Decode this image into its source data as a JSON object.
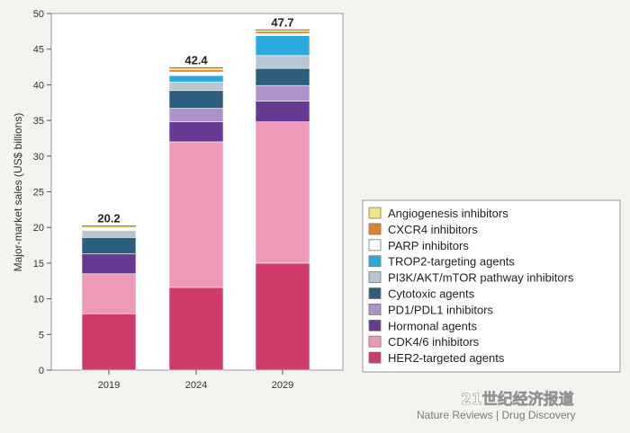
{
  "chart_data": {
    "type": "bar",
    "stacked": true,
    "categories": [
      "2019",
      "2024",
      "2029"
    ],
    "ylabel": "Major-market sales (US$ billions)",
    "xlabel": "",
    "ylim": [
      0,
      50
    ],
    "yticks": [
      0,
      5,
      10,
      15,
      20,
      25,
      30,
      35,
      40,
      45,
      50
    ],
    "totals": [
      "20.2",
      "42.4",
      "47.7"
    ],
    "total_values": [
      20.2,
      42.4,
      47.7
    ],
    "legend_placement": "bottom-right",
    "series": [
      {
        "name": "HER2-targeted agents",
        "color": "#cf3c6a",
        "values": [
          7.9,
          11.6,
          15.0
        ]
      },
      {
        "name": "CDK4/6 inhibitors",
        "color": "#ec9ab8",
        "values": [
          5.6,
          20.4,
          19.8
        ]
      },
      {
        "name": "Hormonal agents",
        "color": "#663a93",
        "values": [
          2.8,
          2.8,
          2.9
        ]
      },
      {
        "name": "PD1/PDL1 inhibitors",
        "color": "#ae93c9",
        "values": [
          0.0,
          1.9,
          2.2
        ]
      },
      {
        "name": "Cytotoxic agents",
        "color": "#2c5e7d",
        "values": [
          2.3,
          2.5,
          2.4
        ]
      },
      {
        "name": "PI3K/AKT/mTOR pathway inhibitors",
        "color": "#b7c6d2",
        "values": [
          1.0,
          1.2,
          1.8
        ]
      },
      {
        "name": "TROP2-targeting agents",
        "color": "#2aa9dd",
        "values": [
          0.0,
          0.9,
          2.8
        ]
      },
      {
        "name": "PARP inhibitors",
        "color": "#ffffff",
        "values": [
          0.3,
          0.5,
          0.3
        ]
      },
      {
        "name": "CXCR4 inhibitors",
        "color": "#e57f29",
        "values": [
          0.0,
          0.3,
          0.3
        ]
      },
      {
        "name": "Angiogenesis inhibitors",
        "color": "#f3e483",
        "values": [
          0.3,
          0.3,
          0.2
        ]
      }
    ]
  },
  "footer": {
    "source": "Nature Reviews | Drug Discovery",
    "watermark": "21世纪经济报道"
  }
}
